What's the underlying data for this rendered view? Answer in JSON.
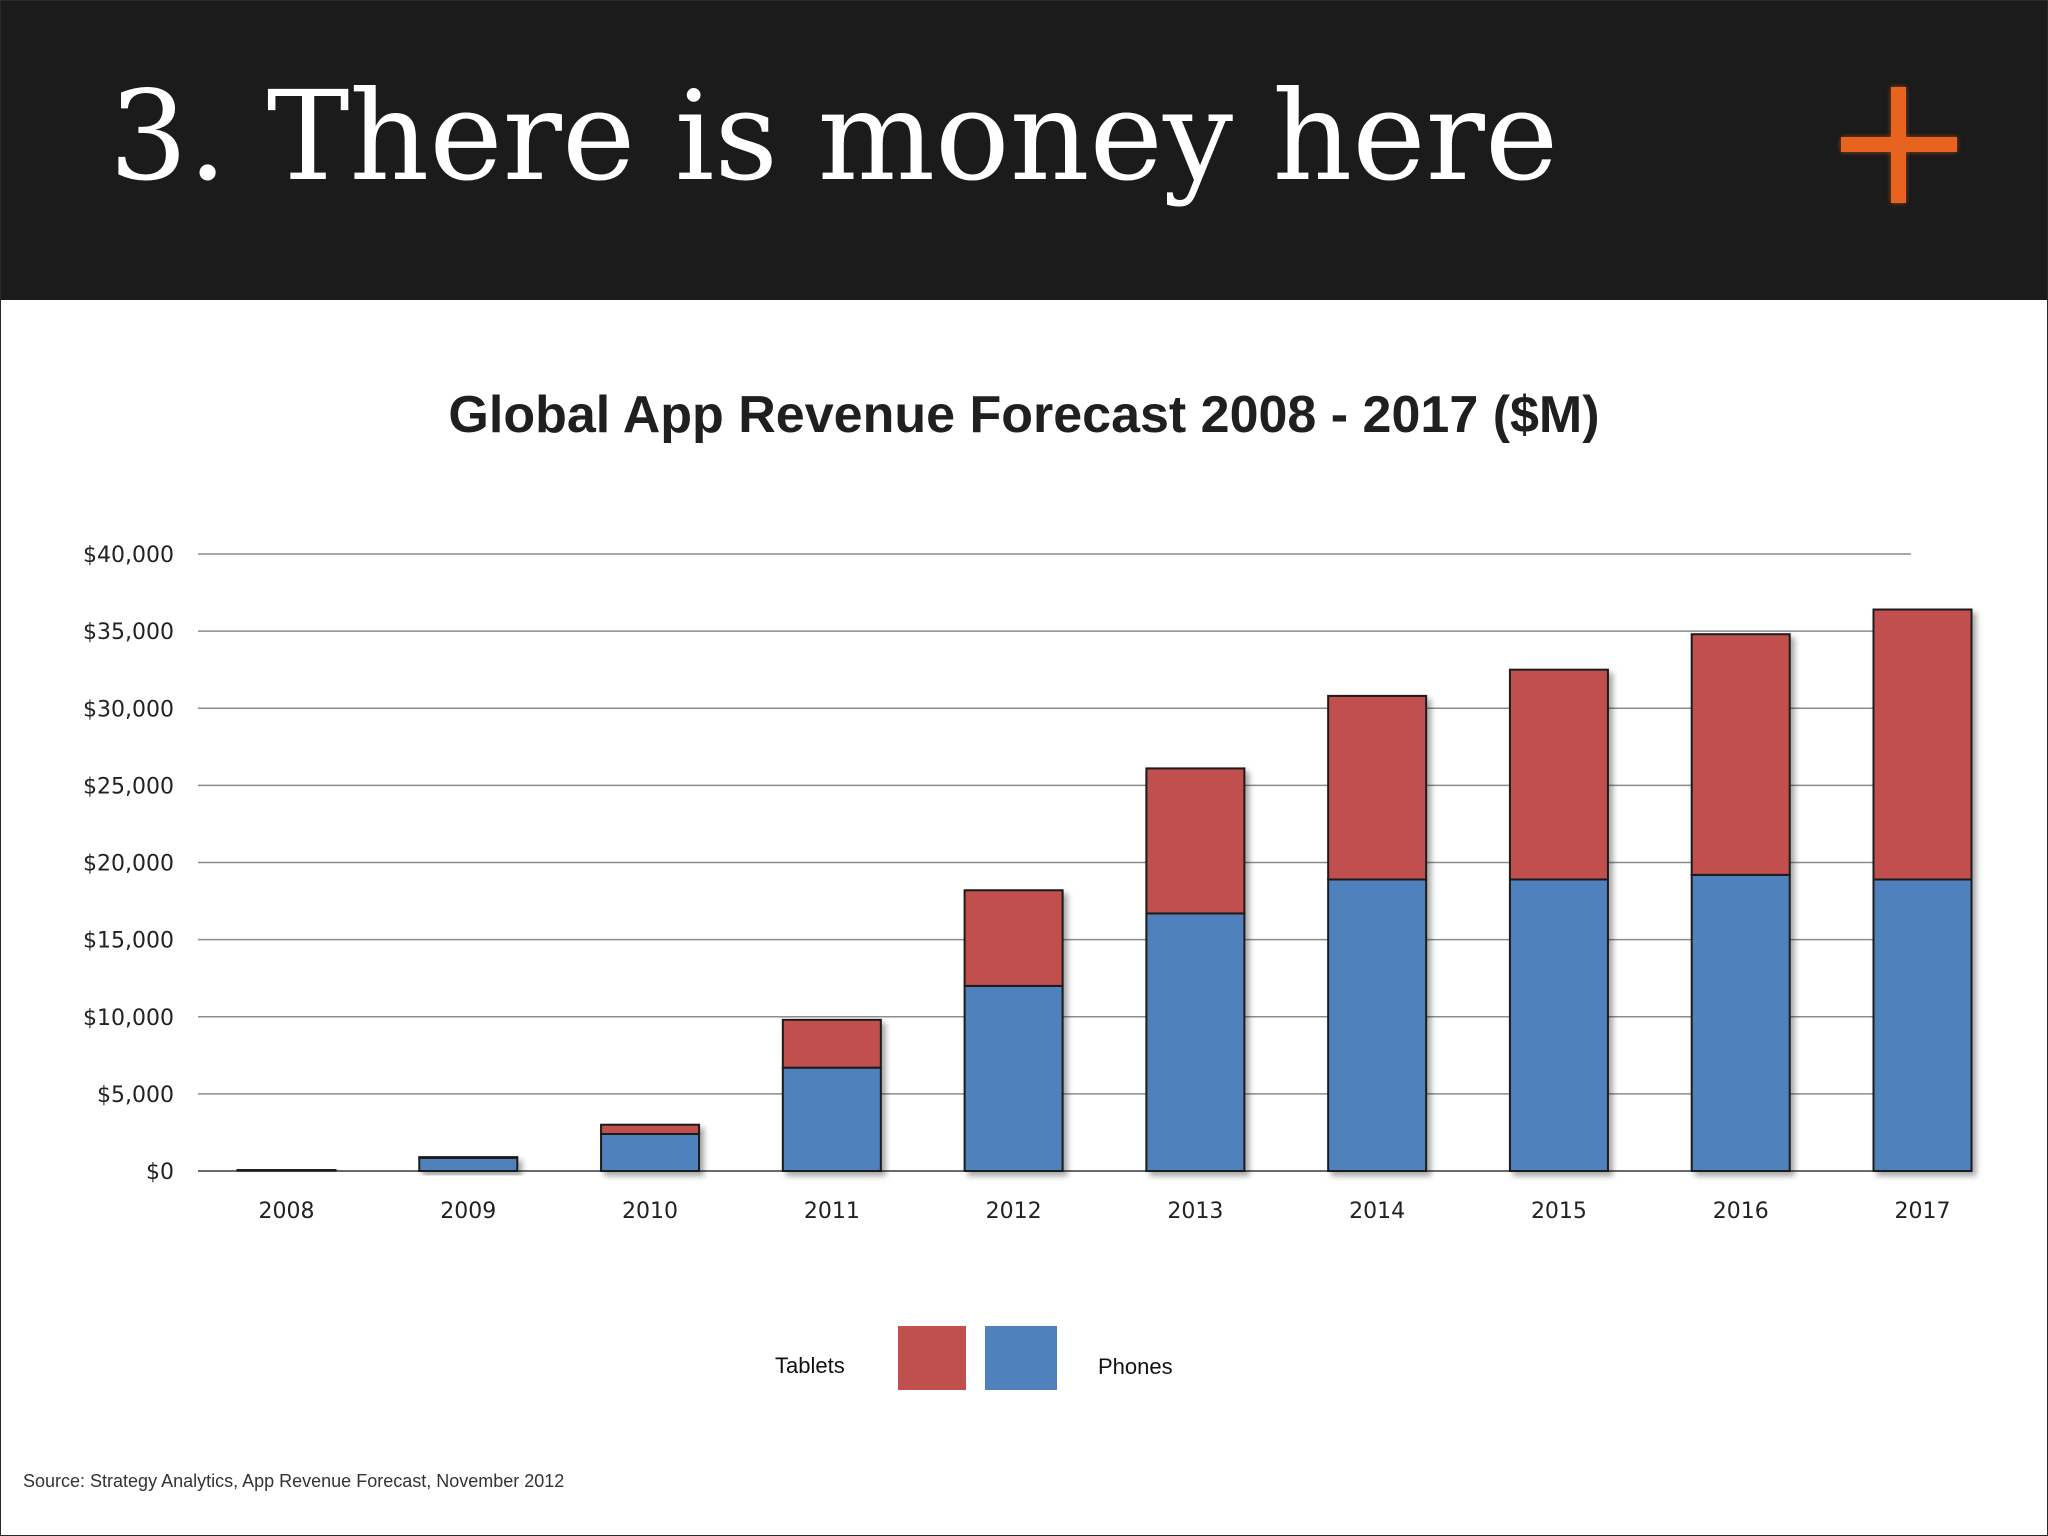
{
  "slide": {
    "title": "3. There is money here",
    "logo_icon": "plus-icon",
    "accent_color": "#e8641e",
    "source": "Source: Strategy Analytics, App Revenue Forecast, November 2012"
  },
  "chart_data": {
    "type": "bar",
    "stacked": true,
    "title": "Global App Revenue Forecast 2008 - 2017 ($M)",
    "xlabel": "",
    "ylabel": "",
    "categories": [
      "2008",
      "2009",
      "2010",
      "2011",
      "2012",
      "2013",
      "2014",
      "2015",
      "2016",
      "2017"
    ],
    "series": [
      {
        "name": "Phones",
        "color": "#4f81bd",
        "values": [
          100,
          850,
          2400,
          6700,
          12000,
          16700,
          18900,
          18900,
          19200,
          18900
        ]
      },
      {
        "name": "Tablets",
        "color": "#c0504d",
        "values": [
          0,
          50,
          600,
          3100,
          6200,
          9400,
          11900,
          13600,
          15600,
          17500
        ]
      }
    ],
    "ylim": [
      0,
      40000
    ],
    "yticks": [
      0,
      5000,
      10000,
      15000,
      20000,
      25000,
      30000,
      35000,
      40000
    ],
    "ytick_labels": [
      "$0",
      "$5,000",
      "$10,000",
      "$15,000",
      "$20,000",
      "$25,000",
      "$30,000",
      "$35,000",
      "$40,000"
    ],
    "grid": true,
    "legend": {
      "placement": "bottom-center",
      "order": [
        "Tablets",
        "Phones"
      ]
    }
  }
}
